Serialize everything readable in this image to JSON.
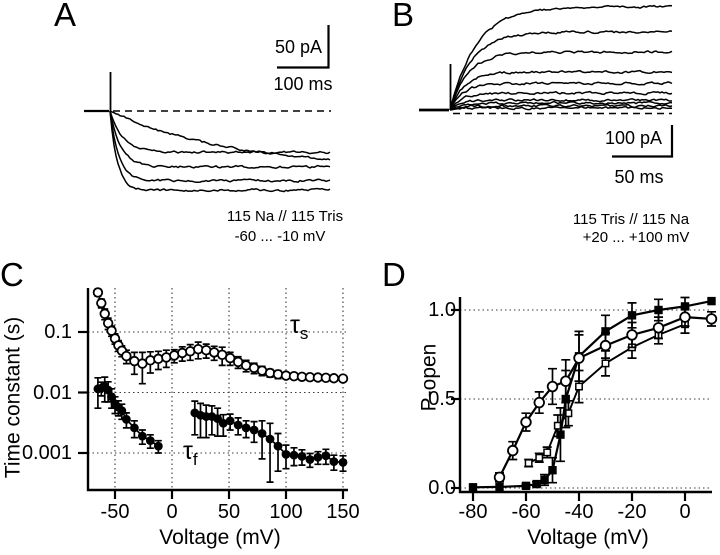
{
  "figure": {
    "panels": {
      "A": {
        "label": "A",
        "scale_current": "50 pA",
        "scale_time": "100 ms",
        "solution": "115 Na // 115 Tris",
        "voltage_range": "-60 ... -10 mV"
      },
      "B": {
        "label": "B",
        "scale_current": "100 pA",
        "scale_time": "50 ms",
        "solution": "115 Tris // 115 Na",
        "voltage_range": "+20 ... +100 mV"
      },
      "C": {
        "label": "C",
        "xlabel": "Voltage (mV)",
        "ylabel": "Time constant (s)",
        "tau_s_symbol": "τ",
        "tau_s_sub": "s",
        "tau_f_symbol": "τ",
        "tau_f_sub": "f"
      },
      "D": {
        "label": "D",
        "xlabel": "Voltage (mV)",
        "ylabel": "P-open"
      }
    }
  },
  "chart_data": [
    {
      "panel": "C",
      "type": "scatter",
      "xlabel": "Voltage (mV)",
      "ylabel": "Time constant (s)",
      "y_scale": "log",
      "x_range": [
        -72,
        155
      ],
      "y_range": [
        0.0003,
        0.55
      ],
      "xticks": [
        -50,
        0,
        50,
        100,
        150
      ],
      "xtick_labels": [
        "-50",
        "0",
        "50",
        "100",
        "150"
      ],
      "yticks": [
        0.1,
        0.01,
        0.001
      ],
      "ytick_labels": [
        "0.1",
        "0.01",
        "0.001"
      ],
      "grid": "dotted-both",
      "point_format": "[voltage_mV, time_constant_s, error_s]",
      "series": [
        {
          "name": "tau_s",
          "label": "τs",
          "marker": "open-circle",
          "error_bars": true,
          "segments": [
            [
              [
                -65,
                0.45,
                0.06
              ],
              [
                -62,
                0.3,
                0.05
              ],
              [
                -59,
                0.2,
                0.04
              ],
              [
                -56,
                0.14,
                0.03
              ],
              [
                -53,
                0.105,
                0.02
              ],
              [
                -50,
                0.078,
                0.015
              ],
              [
                -47,
                0.06,
                0.012
              ],
              [
                -44,
                0.049,
                0.01
              ],
              [
                -40,
                0.04,
                0.01
              ],
              [
                -33,
                0.033,
                0.013
              ],
              [
                -26,
                0.03,
                0.016
              ],
              [
                -19,
                0.034,
                0.013
              ],
              [
                -12,
                0.036,
                0.012
              ],
              [
                -5,
                0.038,
                0.012
              ],
              [
                2,
                0.041,
                0.01
              ],
              [
                9,
                0.045,
                0.012
              ],
              [
                16,
                0.048,
                0.014
              ],
              [
                23,
                0.052,
                0.016
              ],
              [
                30,
                0.05,
                0.013
              ],
              [
                37,
                0.046,
                0.012
              ],
              [
                44,
                0.042,
                0.014
              ],
              [
                51,
                0.037,
                0.009
              ],
              [
                58,
                0.032,
                0.007
              ],
              [
                65,
                0.028,
                0.006
              ],
              [
                72,
                0.0255,
                0.005
              ],
              [
                79,
                0.023,
                0.004
              ],
              [
                86,
                0.021,
                0.003
              ],
              [
                93,
                0.02,
                0.003
              ],
              [
                100,
                0.019,
                0.002
              ],
              [
                107,
                0.0186,
                0.002
              ],
              [
                114,
                0.0182,
                0.0015
              ],
              [
                121,
                0.0179,
                0.0012
              ],
              [
                128,
                0.0177,
                0.001
              ],
              [
                135,
                0.0175,
                0.001
              ],
              [
                142,
                0.0172,
                0.001
              ],
              [
                150,
                0.017,
                0.001
              ]
            ]
          ]
        },
        {
          "name": "tau_f",
          "label": "τf",
          "marker": "filled-circle",
          "error_bars": true,
          "segments": [
            [
              [
                -65,
                0.0115,
                0.006
              ],
              [
                -62,
                0.0118,
                0.003
              ],
              [
                -59,
                0.0125,
                0.0055
              ],
              [
                -56,
                0.011,
                0.004
              ],
              [
                -53,
                0.0085,
                0.003
              ],
              [
                -50,
                0.0065,
                0.002
              ],
              [
                -47,
                0.0057,
                0.0016
              ],
              [
                -44,
                0.005,
                0.0014
              ],
              [
                -40,
                0.0036,
                0.001
              ],
              [
                -33,
                0.0026,
                0.0008
              ],
              [
                -26,
                0.0019,
                0.0005
              ],
              [
                -19,
                0.0016,
                0.0004
              ],
              [
                -12,
                0.0013,
                0.0003
              ]
            ],
            [
              [
                20,
                0.0046,
                0.0026
              ],
              [
                25,
                0.0042,
                0.0024
              ],
              [
                30,
                0.004,
                0.0022
              ],
              [
                35,
                0.004,
                0.002
              ],
              [
                40,
                0.0037,
                0.0018
              ],
              [
                45,
                0.0031,
                0.0012
              ],
              [
                51,
                0.0034,
                0.001
              ],
              [
                58,
                0.0029,
                0.0009
              ],
              [
                65,
                0.0026,
                0.0008
              ],
              [
                72,
                0.0024,
                0.0009
              ],
              [
                79,
                0.0021,
                0.0013
              ],
              [
                86,
                0.0017,
                0.0014
              ],
              [
                93,
                0.0013,
                0.0008
              ],
              [
                100,
                0.00095,
                0.0004
              ],
              [
                107,
                0.00092,
                0.0003
              ],
              [
                114,
                0.00088,
                0.00025
              ],
              [
                121,
                0.00078,
                0.0002
              ],
              [
                128,
                0.00085,
                0.0002
              ],
              [
                135,
                0.0009,
                0.00025
              ],
              [
                142,
                0.00072,
                0.0002
              ],
              [
                150,
                0.0007,
                0.0002
              ]
            ]
          ]
        }
      ]
    },
    {
      "panel": "D",
      "type": "scatter",
      "xlabel": "Voltage (mV)",
      "ylabel": "P-open",
      "y_scale": "linear",
      "x_range": [
        -86,
        12
      ],
      "y_range": [
        -0.02,
        1.1
      ],
      "xticks": [
        -80,
        -60,
        -40,
        -20,
        0
      ],
      "xtick_labels": [
        "-80",
        "-60",
        "-40",
        "-20",
        "0"
      ],
      "yticks": [
        1.0,
        0.5,
        0.0
      ],
      "ytick_labels": [
        "1.0",
        "0.5",
        "0.0"
      ],
      "grid": "dotted-horizontal",
      "point_format": "[voltage_mV, p_open, error]",
      "series": [
        {
          "name": "open_squares",
          "marker": "open-square",
          "error_bars": true,
          "segments": [
            [
              [
                -59,
                0.14,
                0.02
              ],
              [
                -55,
                0.17,
                0.025
              ],
              [
                -52,
                0.2,
                0.03
              ],
              [
                -48,
                0.35,
                0.06
              ],
              [
                -44,
                0.42,
                0.07
              ],
              [
                -40,
                0.57,
                0.09
              ],
              [
                -30,
                0.7,
                0.07
              ],
              [
                -20,
                0.79,
                0.06
              ],
              [
                -10,
                0.86,
                0.05
              ],
              [
                0,
                0.92,
                0.05
              ]
            ]
          ]
        },
        {
          "name": "filled_squares",
          "marker": "filled-square",
          "error_bars": true,
          "segments": [
            [
              [
                -80,
                0.004,
                0
              ],
              [
                -70,
                0.006,
                0
              ],
              [
                -60,
                0.012,
                0.01
              ],
              [
                -56,
                0.022,
                0.012
              ],
              [
                -53,
                0.045,
                0.03
              ],
              [
                -50,
                0.1,
                0.07
              ],
              [
                -47,
                0.3,
                0.15
              ],
              [
                -45,
                0.5,
                0.16
              ],
              [
                -40,
                0.74,
                0.14
              ],
              [
                -30,
                0.88,
                0.09
              ],
              [
                -20,
                0.97,
                0.07
              ],
              [
                -10,
                1.0,
                0.06
              ],
              [
                0,
                1.02,
                0.05
              ],
              [
                10,
                1.05,
                0
              ]
            ]
          ]
        },
        {
          "name": "open_circles",
          "marker": "open-circle",
          "error_bars": true,
          "segments": [
            [
              [
                -70,
                0.06,
                0.025
              ],
              [
                -65,
                0.21,
                0.05
              ],
              [
                -60,
                0.37,
                0.05
              ],
              [
                -55,
                0.48,
                0.06
              ],
              [
                -50,
                0.57,
                0.1
              ],
              [
                -45,
                0.6,
                0.12
              ],
              [
                -40,
                0.73,
                0.13
              ],
              [
                -30,
                0.8,
                0.07
              ],
              [
                -20,
                0.86,
                0.07
              ],
              [
                -10,
                0.9,
                0.06
              ],
              [
                0,
                0.96,
                0.05
              ],
              [
                10,
                0.95,
                0.04
              ]
            ]
          ]
        }
      ]
    },
    {
      "panel": "A",
      "type": "current-traces",
      "direction": "inward",
      "baseline": "dashed",
      "scalebar": {
        "current": "50 pA",
        "time": "100 ms"
      },
      "annotation": [
        "115 Na // 115 Tris",
        "-60 ... -10 mV"
      ],
      "traces": [
        {
          "amplitude_pA": 48,
          "tau_ms": 25
        },
        {
          "amplitude_pA": 65,
          "tau_ms": 21
        },
        {
          "amplitude_pA": 81,
          "tau_ms": 17
        },
        {
          "amplitude_pA": 92,
          "tau_ms": 14
        },
        {
          "amplitude_pA": 67,
          "tau_ms": 233
        }
      ]
    },
    {
      "panel": "B",
      "type": "current-traces",
      "direction": "outward",
      "baseline": "dashed",
      "scalebar": {
        "current": "100 pA",
        "time": "50 ms"
      },
      "annotation": [
        "115 Tris // 115 Na",
        "+20 ... +100 mV"
      ],
      "traces": [
        {
          "amplitude_pA": 322,
          "tau_ms": 22
        },
        {
          "amplitude_pA": 244,
          "tau_ms": 18
        },
        {
          "amplitude_pA": 181,
          "tau_ms": 15
        },
        {
          "amplitude_pA": 119,
          "tau_ms": 12
        },
        {
          "amplitude_pA": 84,
          "tau_ms": 11
        },
        {
          "amplitude_pA": 53,
          "tau_ms": 10
        },
        {
          "amplitude_pA": 31,
          "tau_ms": 9
        },
        {
          "amplitude_pA": 22,
          "tau_ms": 8
        },
        {
          "amplitude_pA": 13,
          "tau_ms": 8
        },
        {
          "amplitude_pA": 6,
          "tau_ms": 8
        }
      ]
    }
  ]
}
